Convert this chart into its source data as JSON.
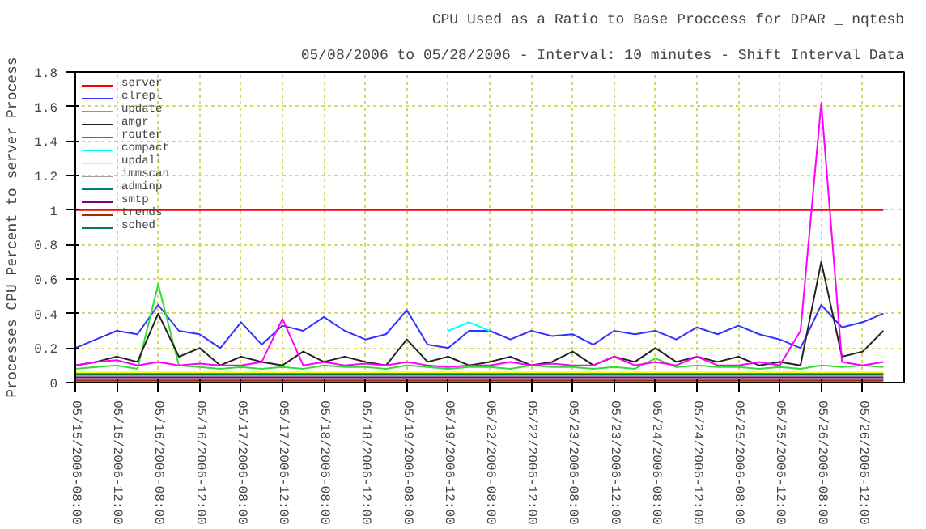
{
  "chart_data": {
    "type": "line",
    "title": "CPU Used as a Ratio to Base Proccess for DPAR _ nqtesb",
    "subtitle": "05/08/2006 to 05/28/2006 - Interval: 10 minutes - Shift Interval Data",
    "ylabel": "Processes CPU Percent to server Process",
    "categories": [
      "05/15/2006-08:00",
      null,
      "05/15/2006-12:00",
      null,
      "05/16/2006-08:00",
      null,
      "05/16/2006-12:00",
      null,
      "05/17/2006-08:00",
      null,
      "05/17/2006-12:00",
      null,
      "05/18/2006-08:00",
      null,
      "05/18/2006-12:00",
      null,
      "05/19/2006-08:00",
      null,
      "05/19/2006-12:00",
      null,
      "05/22/2006-08:00",
      null,
      "05/22/2006-12:00",
      null,
      "05/23/2006-08:00",
      null,
      "05/23/2006-12:00",
      null,
      "05/24/2006-08:00",
      null,
      "05/24/2006-12:00",
      null,
      "05/25/2006-08:00",
      null,
      "05/25/2006-12:00",
      null,
      "05/26/2006-08:00",
      null,
      "05/26/2006-12:00",
      null
    ],
    "ylim": [
      0,
      1.8
    ],
    "yticks": [
      0,
      0.2,
      0.4,
      0.6,
      0.8,
      1,
      1.2,
      1.4,
      1.6,
      1.8
    ],
    "grid": true,
    "legend": "top left",
    "line_style": "solid",
    "marker": "none",
    "series": [
      {
        "name": "server",
        "color": "#ff0000",
        "values": [
          1,
          1,
          1,
          1,
          1,
          1,
          1,
          1,
          1,
          1,
          1,
          1,
          1,
          1,
          1,
          1,
          1,
          1,
          1,
          1,
          1,
          1,
          1,
          1,
          1,
          1,
          1,
          1,
          1,
          1,
          1,
          1,
          1,
          1,
          1,
          1,
          1,
          1,
          1,
          1
        ]
      },
      {
        "name": "clrepl",
        "color": "#3333ff",
        "values": [
          0.2,
          0.25,
          0.3,
          0.28,
          0.45,
          0.3,
          0.28,
          0.2,
          0.35,
          0.22,
          0.33,
          0.3,
          0.38,
          0.3,
          0.25,
          0.28,
          0.42,
          0.22,
          0.2,
          0.3,
          0.3,
          0.25,
          0.3,
          0.27,
          0.28,
          0.22,
          0.3,
          0.28,
          0.3,
          0.25,
          0.32,
          0.28,
          0.33,
          0.28,
          0.25,
          0.2,
          0.45,
          0.32,
          0.35,
          0.4
        ]
      },
      {
        "name": "update",
        "color": "#33dd33",
        "values": [
          0.08,
          0.09,
          0.1,
          0.08,
          0.57,
          0.1,
          0.09,
          0.08,
          0.09,
          0.08,
          0.09,
          0.08,
          0.1,
          0.09,
          0.09,
          0.08,
          0.1,
          0.09,
          0.08,
          0.09,
          0.09,
          0.08,
          0.1,
          0.09,
          0.09,
          0.08,
          0.09,
          0.08,
          0.14,
          0.09,
          0.1,
          0.09,
          0.09,
          0.08,
          0.09,
          0.08,
          0.1,
          0.09,
          0.1,
          0.09
        ]
      },
      {
        "name": "amgr",
        "color": "#222222",
        "values": [
          0.1,
          0.12,
          0.15,
          0.12,
          0.4,
          0.15,
          0.2,
          0.1,
          0.15,
          0.12,
          0.1,
          0.18,
          0.12,
          0.15,
          0.12,
          0.1,
          0.25,
          0.12,
          0.15,
          0.1,
          0.12,
          0.15,
          0.1,
          0.12,
          0.18,
          0.1,
          0.15,
          0.12,
          0.2,
          0.12,
          0.15,
          0.12,
          0.15,
          0.1,
          0.12,
          0.1,
          0.7,
          0.15,
          0.18,
          0.3
        ]
      },
      {
        "name": "router",
        "color": "#ff00ff",
        "values": [
          0.1,
          0.12,
          0.13,
          0.1,
          0.12,
          0.1,
          0.11,
          0.1,
          0.1,
          0.12,
          0.37,
          0.1,
          0.12,
          0.1,
          0.11,
          0.1,
          0.12,
          0.1,
          0.09,
          0.1,
          0.1,
          0.12,
          0.1,
          0.11,
          0.1,
          0.1,
          0.15,
          0.1,
          0.12,
          0.1,
          0.15,
          0.1,
          0.1,
          0.12,
          0.1,
          0.3,
          1.62,
          0.12,
          0.1,
          0.12
        ]
      },
      {
        "name": "compact",
        "color": "#00ffff",
        "values": [
          null,
          null,
          null,
          null,
          null,
          null,
          null,
          null,
          null,
          null,
          null,
          null,
          null,
          null,
          null,
          null,
          null,
          null,
          0.3,
          0.35,
          0.3,
          null,
          null,
          null,
          null,
          null,
          null,
          null,
          null,
          null,
          null,
          null,
          null,
          null,
          null,
          null,
          null,
          null,
          null,
          null
        ]
      },
      {
        "name": "updall",
        "color": "#ffff00",
        "values": [
          0.06,
          0.06,
          0.06,
          0.06,
          0.06,
          0.06,
          0.06,
          0.06,
          0.06,
          0.06,
          0.06,
          0.06,
          0.06,
          0.06,
          0.06,
          0.06,
          0.06,
          0.06,
          0.06,
          0.06,
          0.06,
          0.06,
          0.06,
          0.06,
          0.06,
          0.06,
          0.06,
          0.06,
          0.06,
          0.06,
          0.06,
          0.06,
          0.06,
          0.06,
          0.06,
          0.06,
          0.06,
          0.06,
          0.06,
          0.06
        ]
      },
      {
        "name": "immscan",
        "color": "#a0a0a0",
        "values": [
          0.04,
          0.04,
          0.04,
          0.04,
          0.04,
          0.04,
          0.04,
          0.04,
          0.04,
          0.04,
          0.04,
          0.04,
          0.04,
          0.04,
          0.04,
          0.04,
          0.04,
          0.04,
          0.04,
          0.04,
          0.04,
          0.04,
          0.04,
          0.04,
          0.04,
          0.04,
          0.04,
          0.04,
          0.04,
          0.04,
          0.04,
          0.04,
          0.04,
          0.04,
          0.04,
          0.04,
          0.04,
          0.04,
          0.04,
          0.04
        ]
      },
      {
        "name": "adminp",
        "color": "#008080",
        "values": [
          0.02,
          0.02,
          0.02,
          0.02,
          0.02,
          0.02,
          0.02,
          0.02,
          0.02,
          0.02,
          0.02,
          0.02,
          0.02,
          0.02,
          0.02,
          0.02,
          0.02,
          0.02,
          0.02,
          0.02,
          0.02,
          0.02,
          0.02,
          0.02,
          0.02,
          0.02,
          0.02,
          0.02,
          0.02,
          0.02,
          0.02,
          0.02,
          0.02,
          0.02,
          0.02,
          0.02,
          0.02,
          0.02,
          0.02,
          0.02
        ]
      },
      {
        "name": "smtp",
        "color": "#800080",
        "values": [
          0.03,
          0.03,
          0.03,
          0.03,
          0.03,
          0.03,
          0.03,
          0.03,
          0.03,
          0.03,
          0.03,
          0.03,
          0.03,
          0.03,
          0.03,
          0.03,
          0.03,
          0.03,
          0.03,
          0.03,
          0.03,
          0.03,
          0.03,
          0.03,
          0.03,
          0.03,
          0.03,
          0.03,
          0.03,
          0.03,
          0.03,
          0.03,
          0.03,
          0.03,
          0.03,
          0.03,
          0.03,
          0.03,
          0.03,
          0.03
        ]
      },
      {
        "name": "trends",
        "color": "#a03000",
        "values": [
          0.01,
          0.01,
          0.01,
          0.01,
          0.01,
          0.01,
          0.01,
          0.01,
          0.01,
          0.01,
          0.01,
          0.01,
          0.01,
          0.01,
          0.01,
          0.01,
          0.01,
          0.01,
          0.01,
          0.01,
          0.01,
          0.01,
          0.01,
          0.01,
          0.01,
          0.01,
          0.01,
          0.01,
          0.01,
          0.01,
          0.01,
          0.01,
          0.01,
          0.01,
          0.01,
          0.01,
          0.01,
          0.01,
          0.01,
          0.01
        ]
      },
      {
        "name": "sched",
        "color": "#008040",
        "values": [
          0.05,
          0.05,
          0.05,
          0.05,
          0.05,
          0.05,
          0.05,
          0.05,
          0.05,
          0.05,
          0.05,
          0.05,
          0.05,
          0.05,
          0.05,
          0.05,
          0.05,
          0.05,
          0.05,
          0.05,
          0.05,
          0.05,
          0.05,
          0.05,
          0.05,
          0.05,
          0.05,
          0.05,
          0.05,
          0.05,
          0.05,
          0.05,
          0.05,
          0.05,
          0.05,
          0.05,
          0.05,
          0.05,
          0.05,
          0.05
        ]
      }
    ]
  }
}
